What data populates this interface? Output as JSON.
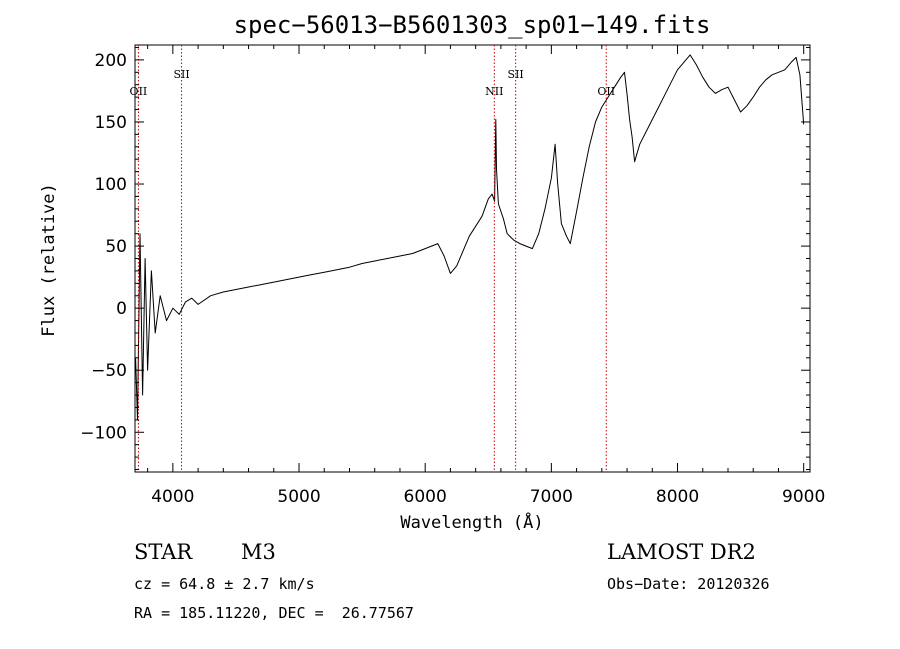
{
  "chart_data": {
    "type": "line",
    "title": "spec−56013−B5601303_sp01−149.fits",
    "xlabel": "Wavelength (Å)",
    "ylabel": "Flux (relative)",
    "xlim": [
      3700,
      9050
    ],
    "ylim": [
      -132,
      212
    ],
    "xticks": [
      4000,
      5000,
      6000,
      7000,
      8000,
      9000
    ],
    "yticks": [
      -100,
      -50,
      0,
      50,
      100,
      150,
      200
    ],
    "ytick_labels": [
      "−100",
      "−50",
      "0",
      "50",
      "100",
      "150",
      "200"
    ],
    "line_color": "#000000",
    "marker_color": "#cc0000",
    "spectral_lines": [
      {
        "label": "OII",
        "x": 3727
      },
      {
        "label": "SII",
        "x": 4069
      },
      {
        "label": "NII",
        "x": 6548
      },
      {
        "label": "SII",
        "x": 6717
      },
      {
        "label": "OII",
        "x": 7435
      }
    ],
    "series": [
      {
        "x": [
          3705,
          3720,
          3740,
          3760,
          3780,
          3800,
          3830,
          3860,
          3900,
          3950,
          4000,
          4050,
          4100,
          4150,
          4200,
          4300,
          4400,
          4500,
          4600,
          4700,
          4800,
          4900,
          5000,
          5100,
          5200,
          5300,
          5400,
          5500,
          5600,
          5700,
          5800,
          5900,
          6000,
          6100,
          6150,
          6200,
          6250,
          6300,
          6350,
          6400,
          6450,
          6500,
          6530,
          6550,
          6560,
          6565,
          6580,
          6620,
          6650,
          6700,
          6750,
          6800,
          6850,
          6900,
          6950,
          7000,
          7030,
          7050,
          7080,
          7120,
          7150,
          7200,
          7250,
          7300,
          7350,
          7400,
          7450,
          7500,
          7550,
          7580,
          7600,
          7620,
          7640,
          7660,
          7700,
          7750,
          7800,
          7850,
          7900,
          7950,
          8000,
          8050,
          8100,
          8150,
          8200,
          8250,
          8300,
          8350,
          8400,
          8450,
          8500,
          8550,
          8600,
          8650,
          8700,
          8750,
          8800,
          8850,
          8900,
          8940,
          8970,
          9000
        ],
        "y": [
          -40,
          -90,
          60,
          -70,
          40,
          -50,
          30,
          -20,
          10,
          -10,
          0,
          -5,
          5,
          8,
          3,
          10,
          13,
          15,
          17,
          19,
          21,
          23,
          25,
          27,
          29,
          31,
          33,
          36,
          38,
          40,
          42,
          44,
          48,
          52,
          42,
          28,
          34,
          46,
          58,
          66,
          74,
          88,
          92,
          86,
          152,
          112,
          84,
          72,
          60,
          55,
          52,
          50,
          48,
          60,
          80,
          105,
          132,
          100,
          68,
          58,
          52,
          78,
          105,
          130,
          150,
          162,
          170,
          178,
          186,
          190,
          172,
          152,
          138,
          118,
          132,
          142,
          152,
          162,
          172,
          182,
          192,
          198,
          204,
          196,
          186,
          178,
          173,
          176,
          178,
          168,
          158,
          163,
          170,
          178,
          184,
          188,
          190,
          192,
          198,
          202,
          188,
          148
        ]
      }
    ]
  },
  "info": {
    "object_class": "STAR",
    "subclass": "M3",
    "survey": "LAMOST DR2",
    "redshift": "cz = 64.8 ± 2.7 km/s",
    "obs_date": "Obs−Date: 20120326",
    "coords": "RA = 185.11220, DEC =  26.77567"
  }
}
